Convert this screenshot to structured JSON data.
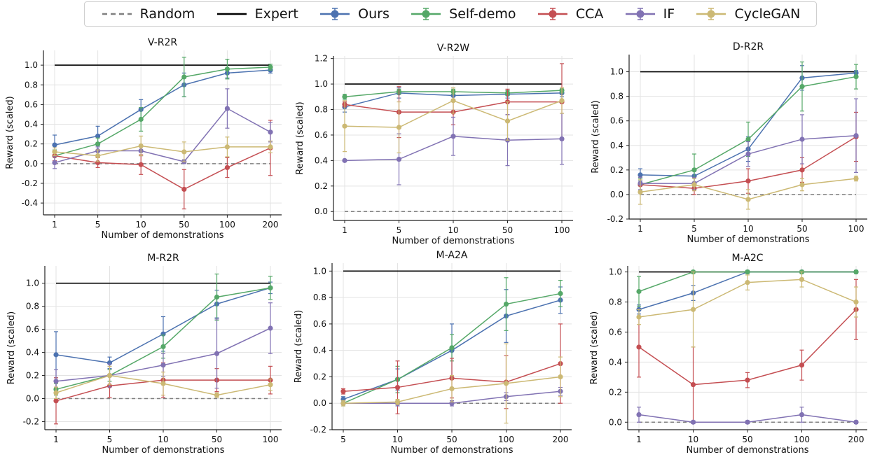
{
  "legend": [
    {
      "label": "Random",
      "color": "#808080",
      "style": "dashed"
    },
    {
      "label": "Expert",
      "color": "#000000",
      "style": "solid"
    },
    {
      "label": "Ours",
      "color": "#4c72b0",
      "style": "marker"
    },
    {
      "label": "Self-demo",
      "color": "#55a868",
      "style": "marker"
    },
    {
      "label": "CCA",
      "color": "#c44e52",
      "style": "marker"
    },
    {
      "label": "IF",
      "color": "#8172b3",
      "style": "marker"
    },
    {
      "label": "CycleGAN",
      "color": "#ccb974",
      "style": "marker"
    }
  ],
  "chart_data": [
    {
      "type": "line",
      "title": "V-R2R",
      "xlabel": "Number of demonstrations",
      "ylabel": "Reward (scaled)",
      "categories": [
        "1",
        "5",
        "10",
        "50",
        "100",
        "200"
      ],
      "ylim": [
        -0.52,
        1.15
      ],
      "yticks": [
        -0.4,
        -0.2,
        0.0,
        0.2,
        0.4,
        0.6,
        0.8,
        1.0
      ],
      "random": 0.0,
      "expert": 1.0,
      "series": [
        {
          "name": "Ours",
          "values": [
            0.19,
            0.28,
            0.55,
            0.8,
            0.92,
            0.95
          ],
          "err": [
            0.1,
            0.1,
            0.1,
            0.12,
            0.05,
            0.03
          ]
        },
        {
          "name": "Self-demo",
          "values": [
            0.08,
            0.2,
            0.45,
            0.88,
            0.96,
            0.98
          ],
          "err": [
            0.06,
            0.06,
            0.12,
            0.2,
            0.1,
            0.03
          ]
        },
        {
          "name": "CCA",
          "values": [
            0.08,
            0.01,
            -0.01,
            -0.26,
            -0.04,
            0.16
          ],
          "err": [
            0.05,
            0.05,
            0.1,
            0.2,
            0.1,
            0.28
          ]
        },
        {
          "name": "IF",
          "values": [
            0.01,
            0.13,
            0.13,
            0.02,
            0.56,
            0.32
          ],
          "err": [
            0.06,
            0.04,
            0.05,
            0.02,
            0.2,
            0.1
          ]
        },
        {
          "name": "CycleGAN",
          "values": [
            0.12,
            0.08,
            0.18,
            0.12,
            0.17,
            0.17
          ],
          "err": [
            0.04,
            0.06,
            0.1,
            0.1,
            0.1,
            0.06
          ]
        }
      ]
    },
    {
      "type": "line",
      "title": "V-R2W",
      "xlabel": "Number of demonstrations",
      "ylabel": "Reward (scaled)",
      "categories": [
        "1",
        "5",
        "10",
        "50",
        "100"
      ],
      "ylim": [
        -0.07,
        1.22
      ],
      "yticks": [
        0.0,
        0.2,
        0.4,
        0.6,
        0.8,
        1.0,
        1.2
      ],
      "random": 0.0,
      "expert": 1.0,
      "series": [
        {
          "name": "Ours",
          "values": [
            0.82,
            0.93,
            0.91,
            0.92,
            0.93
          ],
          "err": [
            0.04,
            0.04,
            0.03,
            0.03,
            0.03
          ]
        },
        {
          "name": "Self-demo",
          "values": [
            0.9,
            0.94,
            0.94,
            0.93,
            0.95
          ],
          "err": [
            0.02,
            0.02,
            0.02,
            0.02,
            0.02
          ]
        },
        {
          "name": "CCA",
          "values": [
            0.84,
            0.78,
            0.78,
            0.86,
            0.86
          ],
          "err": [
            0.02,
            0.2,
            0.1,
            0.1,
            0.3
          ]
        },
        {
          "name": "IF",
          "values": [
            0.4,
            0.41,
            0.59,
            0.56,
            0.57
          ],
          "err": [
            0.01,
            0.2,
            0.15,
            0.2,
            0.2
          ]
        },
        {
          "name": "CycleGAN",
          "values": [
            0.67,
            0.66,
            0.87,
            0.71,
            0.87
          ],
          "err": [
            0.2,
            0.2,
            0.1,
            0.15,
            0.1
          ]
        }
      ]
    },
    {
      "type": "line",
      "title": "D-R2R",
      "xlabel": "Number of demonstrations",
      "ylabel": "Reward (scaled)",
      "categories": [
        "1",
        "5",
        "10",
        "50",
        "100"
      ],
      "ylim": [
        -0.2,
        1.14
      ],
      "yticks": [
        -0.2,
        0.0,
        0.2,
        0.4,
        0.6,
        0.8,
        1.0
      ],
      "random": 0.0,
      "expert": 1.0,
      "series": [
        {
          "name": "Ours",
          "values": [
            0.16,
            0.15,
            0.37,
            0.95,
            0.99
          ],
          "err": [
            0.05,
            0.05,
            0.1,
            0.1,
            0.02
          ]
        },
        {
          "name": "Self-demo",
          "values": [
            0.08,
            0.2,
            0.45,
            0.88,
            0.96
          ],
          "err": [
            0.05,
            0.13,
            0.14,
            0.2,
            0.1
          ]
        },
        {
          "name": "CCA",
          "values": [
            0.08,
            0.05,
            0.11,
            0.2,
            0.47
          ],
          "err": [
            0.06,
            0.05,
            0.1,
            0.1,
            0.2
          ]
        },
        {
          "name": "IF",
          "values": [
            0.09,
            0.09,
            0.33,
            0.45,
            0.48
          ],
          "err": [
            0.05,
            0.05,
            0.1,
            0.2,
            0.3
          ]
        },
        {
          "name": "CycleGAN",
          "values": [
            0.02,
            0.08,
            -0.04,
            0.08,
            0.13
          ],
          "err": [
            0.1,
            0.05,
            0.08,
            0.05,
            0.02
          ]
        }
      ]
    },
    {
      "type": "line",
      "title": "M-R2R",
      "xlabel": "Number of demonstrations",
      "ylabel": "Reward (scaled)",
      "categories": [
        "1",
        "5",
        "10",
        "50",
        "100"
      ],
      "ylim": [
        -0.27,
        1.15
      ],
      "yticks": [
        -0.2,
        0.0,
        0.2,
        0.4,
        0.6,
        0.8,
        1.0
      ],
      "random": 0.0,
      "expert": 1.0,
      "series": [
        {
          "name": "Ours",
          "values": [
            0.38,
            0.31,
            0.56,
            0.82,
            0.96
          ],
          "err": [
            0.2,
            0.05,
            0.15,
            0.12,
            0.05
          ]
        },
        {
          "name": "Self-demo",
          "values": [
            0.08,
            0.2,
            0.45,
            0.88,
            0.96
          ],
          "err": [
            0.05,
            0.05,
            0.1,
            0.2,
            0.1
          ]
        },
        {
          "name": "CCA",
          "values": [
            -0.02,
            0.11,
            0.16,
            0.16,
            0.16
          ],
          "err": [
            0.2,
            0.1,
            0.15,
            0.1,
            0.12
          ]
        },
        {
          "name": "IF",
          "values": [
            0.15,
            0.2,
            0.29,
            0.39,
            0.61
          ],
          "err": [
            0.1,
            0.1,
            0.1,
            0.3,
            0.22
          ]
        },
        {
          "name": "CycleGAN",
          "values": [
            0.05,
            0.2,
            0.13,
            0.03,
            0.12
          ],
          "err": [
            0.05,
            0.08,
            0.1,
            0.02,
            0.05
          ]
        }
      ]
    },
    {
      "type": "line",
      "title": "M-A2A",
      "xlabel": "Number of demonstrations",
      "ylabel": "Reward (scaled)",
      "categories": [
        "5",
        "10",
        "50",
        "100",
        "200"
      ],
      "ylim": [
        -0.2,
        1.06
      ],
      "yticks": [
        -0.2,
        0.0,
        0.2,
        0.4,
        0.6,
        0.8,
        1.0
      ],
      "random": 0.0,
      "expert": 1.0,
      "series": [
        {
          "name": "Ours",
          "values": [
            0.03,
            0.18,
            0.4,
            0.66,
            0.78
          ],
          "err": [
            0.02,
            0.08,
            0.2,
            0.2,
            0.1
          ]
        },
        {
          "name": "Self-demo",
          "values": [
            0.0,
            0.18,
            0.42,
            0.75,
            0.83
          ],
          "err": [
            0.02,
            0.1,
            0.1,
            0.2,
            0.1
          ]
        },
        {
          "name": "CCA",
          "values": [
            0.09,
            0.12,
            0.19,
            0.16,
            0.3
          ],
          "err": [
            0.02,
            0.2,
            0.15,
            0.2,
            0.3
          ]
        },
        {
          "name": "IF",
          "values": [
            0.0,
            0.0,
            0.0,
            0.05,
            0.09
          ],
          "err": [
            0.01,
            0.02,
            0.02,
            0.03,
            0.03
          ]
        },
        {
          "name": "CycleGAN",
          "values": [
            0.0,
            0.01,
            0.11,
            0.15,
            0.2
          ],
          "err": [
            0.02,
            0.02,
            0.1,
            0.3,
            0.15
          ]
        }
      ]
    },
    {
      "type": "line",
      "title": "M-A2C",
      "xlabel": "Number of demonstrations",
      "ylabel": "Reward (scaled)",
      "categories": [
        "1",
        "10",
        "50",
        "100",
        "200"
      ],
      "ylim": [
        -0.05,
        1.04
      ],
      "yticks": [
        0.0,
        0.2,
        0.4,
        0.6,
        0.8,
        1.0
      ],
      "random": 0.0,
      "expert": 1.0,
      "series": [
        {
          "name": "Ours",
          "values": [
            0.75,
            0.86,
            1.0,
            1.0,
            1.0
          ],
          "err": [
            0.03,
            0.05,
            0.01,
            0.01,
            0.01
          ]
        },
        {
          "name": "Self-demo",
          "values": [
            0.87,
            1.0,
            1.0,
            1.0,
            1.0
          ],
          "err": [
            0.1,
            0.01,
            0.01,
            0.01,
            0.01
          ]
        },
        {
          "name": "CCA",
          "values": [
            0.5,
            0.25,
            0.28,
            0.38,
            0.75
          ],
          "err": [
            0.2,
            0.25,
            0.05,
            0.1,
            0.2
          ]
        },
        {
          "name": "IF",
          "values": [
            0.05,
            0.0,
            0.0,
            0.05,
            0.0
          ],
          "err": [
            0.05,
            0.01,
            0.01,
            0.05,
            0.01
          ]
        },
        {
          "name": "CycleGAN",
          "values": [
            0.7,
            0.75,
            0.93,
            0.95,
            0.8
          ],
          "err": [
            0.05,
            0.25,
            0.05,
            0.05,
            0.1
          ]
        }
      ]
    }
  ]
}
